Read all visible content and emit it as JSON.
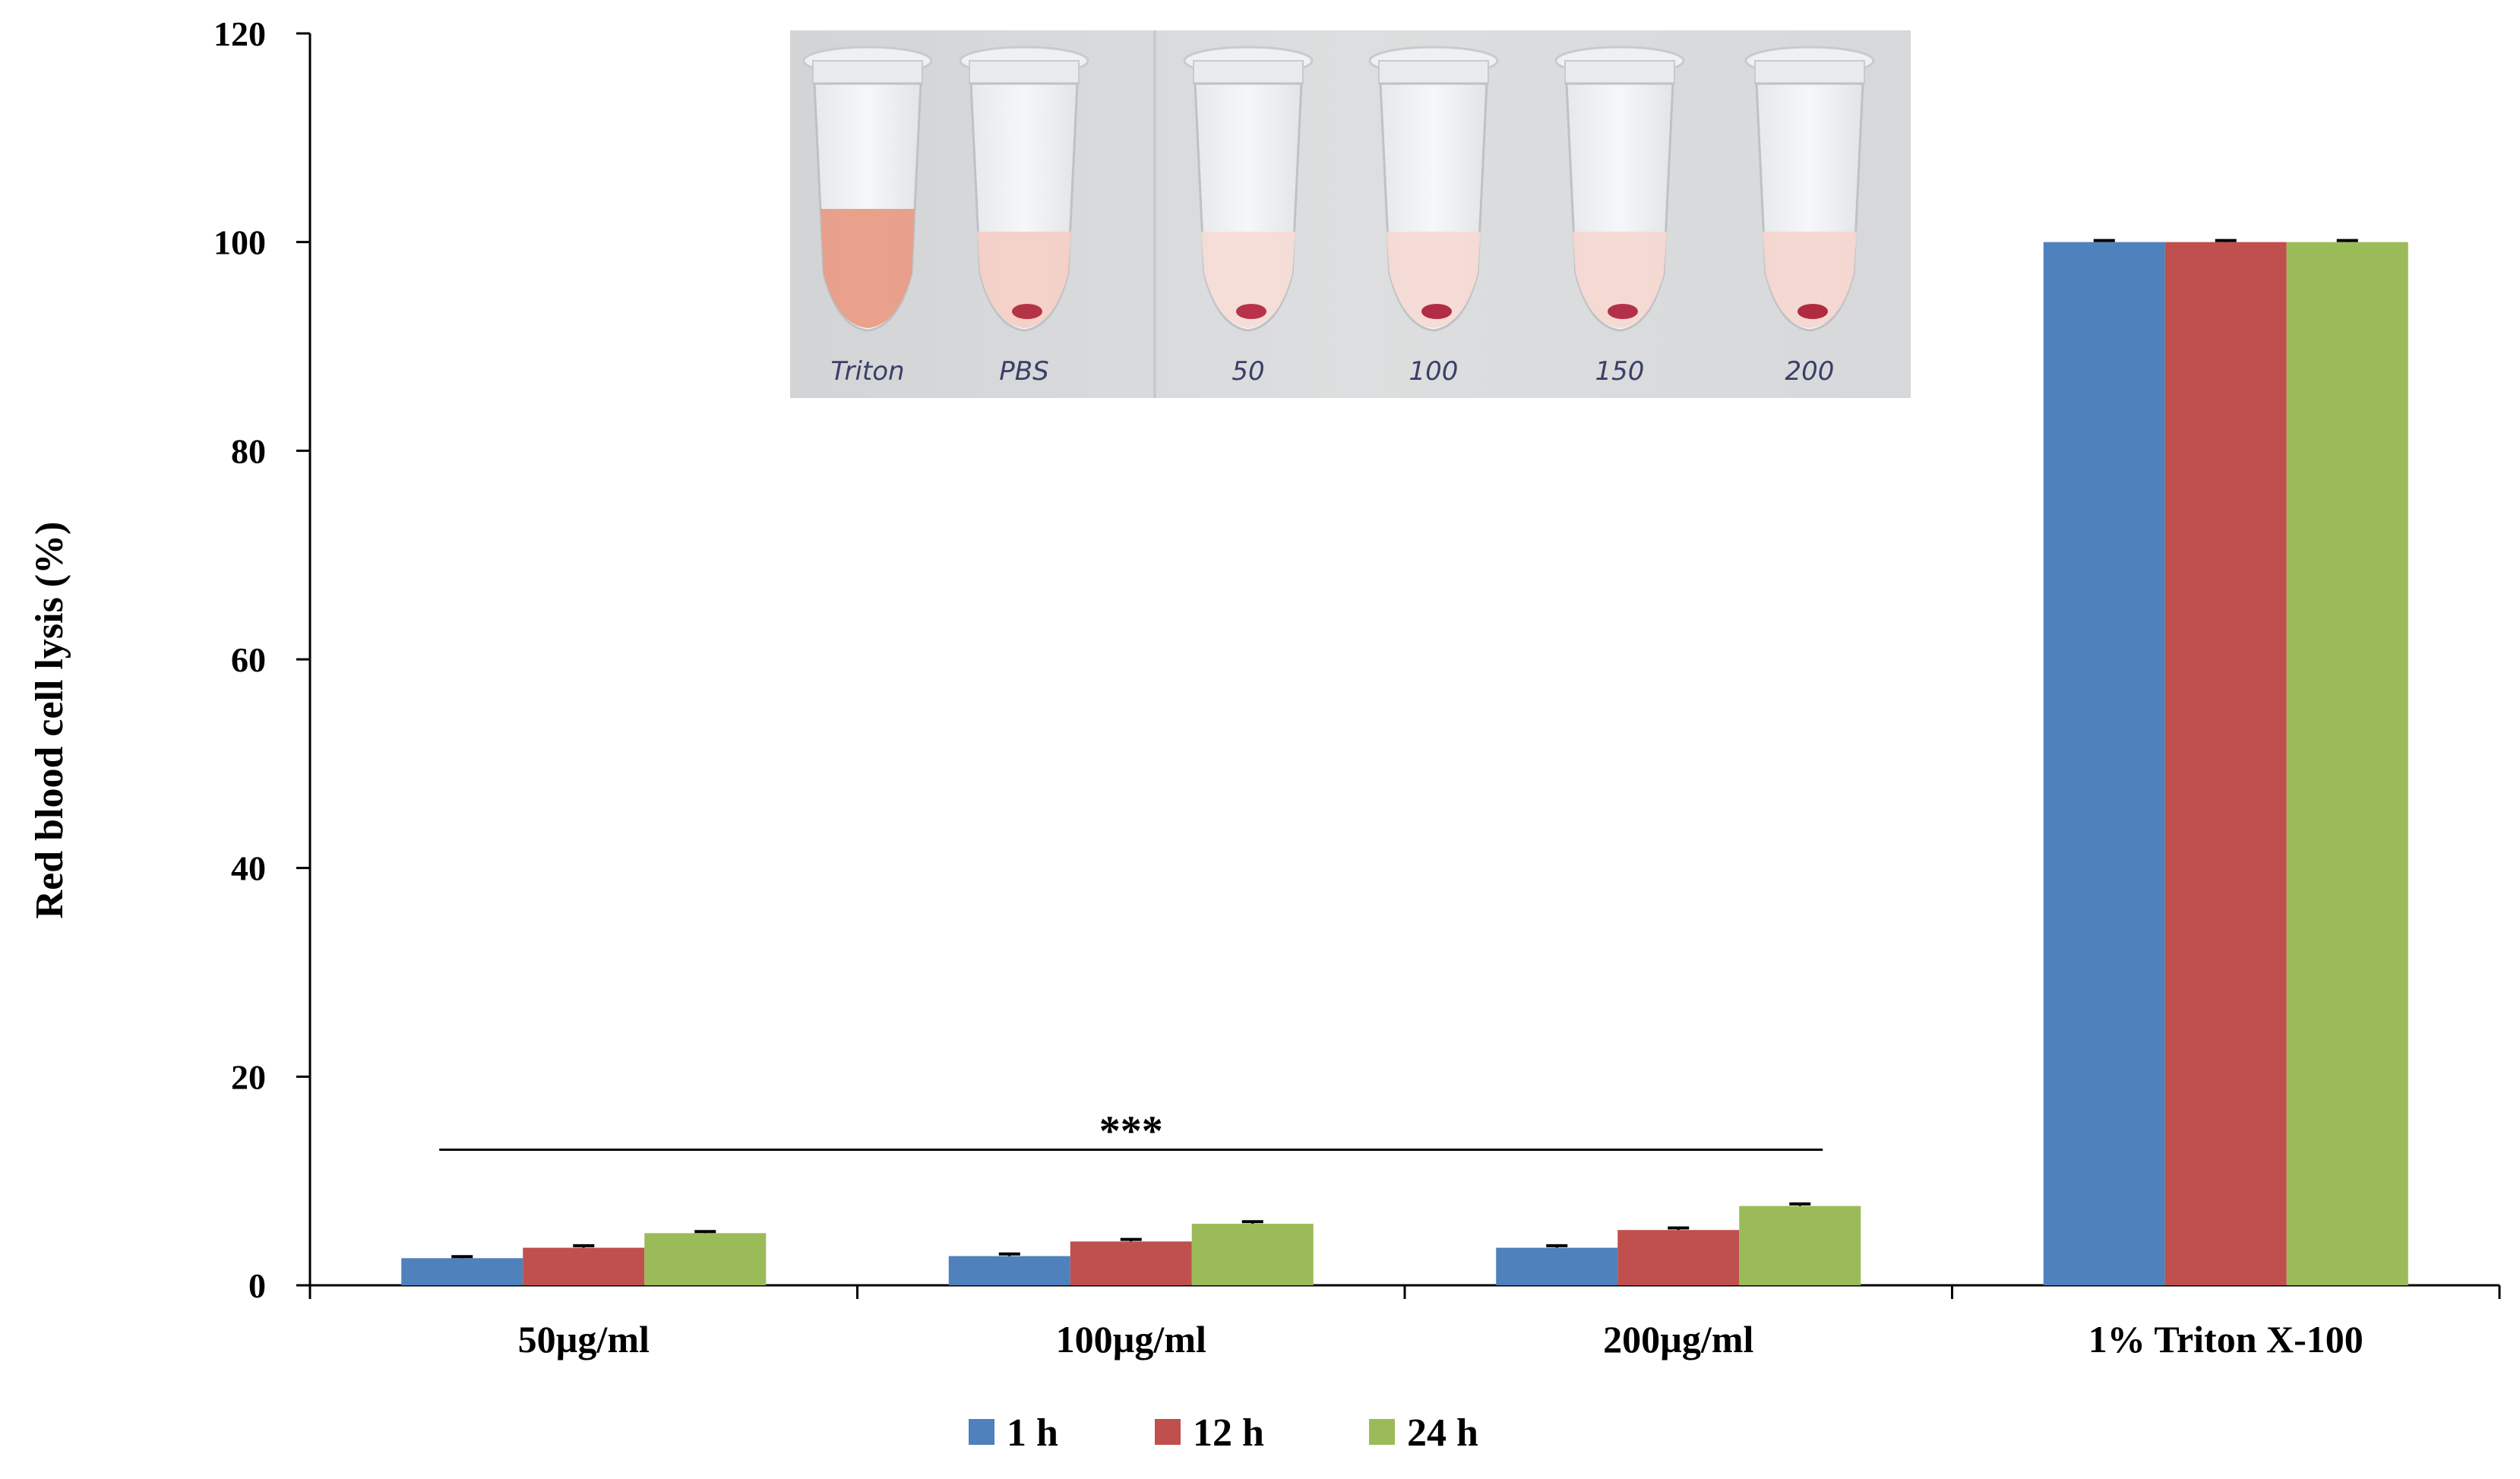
{
  "chart_data": {
    "type": "bar",
    "title": "",
    "xlabel": "",
    "ylabel": "Red blood cell lysis (%)",
    "ylim": [
      0,
      120
    ],
    "yticks": [
      0,
      20,
      40,
      60,
      80,
      100,
      120
    ],
    "categories": [
      "50µg/ml",
      "100µg/ml",
      "200µg/ml",
      "1% Triton X-100"
    ],
    "series": [
      {
        "name": "1 h",
        "color": "#4f81bd",
        "values": [
          2.6,
          2.8,
          3.6,
          100
        ],
        "errors": [
          0.15,
          0.2,
          0.2,
          0.15
        ]
      },
      {
        "name": "12 h",
        "color": "#c0504d",
        "values": [
          3.6,
          4.2,
          5.3,
          100
        ],
        "errors": [
          0.2,
          0.2,
          0.2,
          0.15
        ]
      },
      {
        "name": "24 h",
        "color": "#9bbb59",
        "values": [
          5.0,
          5.9,
          7.6,
          100
        ],
        "errors": [
          0.15,
          0.2,
          0.2,
          0.15
        ]
      }
    ],
    "significance": {
      "label": "***",
      "span": [
        "50µg/ml",
        "200µg/ml"
      ],
      "y": 13
    },
    "legend": {
      "position": "bottom-center"
    },
    "grid": false
  },
  "inset_photo": {
    "tube_labels": [
      "Triton",
      "PBS",
      "50",
      "100",
      "150",
      "200"
    ]
  }
}
